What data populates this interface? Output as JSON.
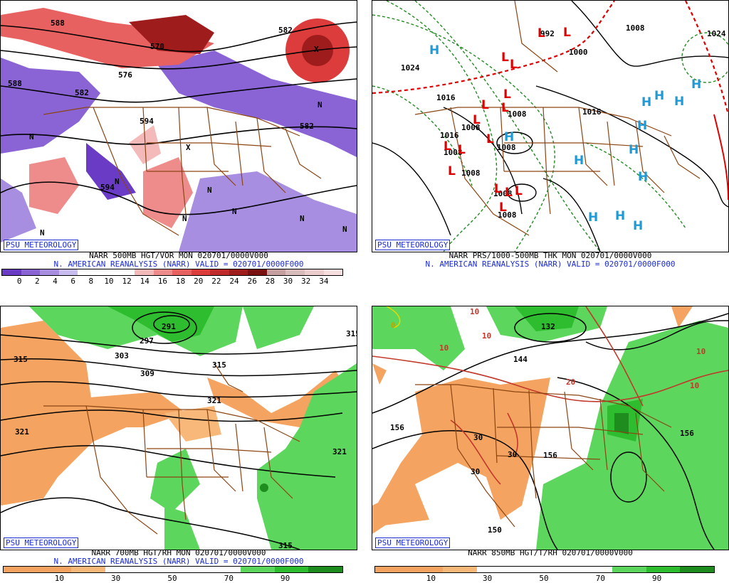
{
  "logo_text": "PSU METEOROLOGY",
  "panels": [
    {
      "id": "vor500",
      "caption1": "NARR 500MB HGT/VOR MON 020701/0000V000",
      "caption2": "N. AMERICAN REANALYSIS (NARR) VALID = 020701/0000F000",
      "colorbar": {
        "labels": [
          "0",
          "2",
          "4",
          "6",
          "8",
          "10",
          "12",
          "14",
          "16",
          "18",
          "20",
          "22",
          "24",
          "26",
          "28",
          "30",
          "32",
          "34"
        ],
        "colors": [
          "#6a3bc4",
          "#8a64d4",
          "#a78ee0",
          "#c9bcef",
          "#ffffff",
          "#ffffff",
          "#ffffff",
          "#f4b9b9",
          "#ee8c8c",
          "#e86161",
          "#dc3c3c",
          "#c02a2a",
          "#9e1c1c",
          "#7a1010",
          "#c6a0a0",
          "#d8bcbc",
          "#eccccc",
          "#f6dede"
        ]
      },
      "contour_labels": [
        "588",
        "582",
        "576",
        "570",
        "582",
        "594",
        "594",
        "588",
        "582"
      ],
      "center_marks": [
        "N",
        "N",
        "N",
        "N",
        "N",
        "N",
        "N",
        "N",
        "N",
        "X",
        "X"
      ]
    },
    {
      "id": "prs",
      "caption1": "NARR PRS/1000-500MB THK MON 020701/0000V000",
      "caption2": "N. AMERICAN REANALYSIS (NARR) VALID = 020701/0000F000",
      "contour_labels": [
        "1024",
        "1016",
        "1008",
        "1008",
        "1016",
        "1008",
        "1000",
        "992",
        "1008",
        "1008",
        "1008",
        "1008",
        "1008",
        "1016",
        "1024"
      ],
      "highs": [
        "H",
        "H",
        "H",
        "H",
        "H",
        "H",
        "H",
        "H",
        "H",
        "H",
        "H",
        "H",
        "H"
      ],
      "lows": [
        "L",
        "L",
        "L",
        "L",
        "L",
        "L",
        "L",
        "L",
        "L",
        "L",
        "L",
        "L",
        "L",
        "L",
        "L",
        "L"
      ]
    },
    {
      "id": "rh700",
      "caption1": "NARR 700MB HGT/RH MON 020701/0000V000",
      "caption2": "N. AMERICAN REANALYSIS (NARR) VALID = 020701/0000F000",
      "colorbar": {
        "labels": [
          "10",
          "30",
          "50",
          "70",
          "90"
        ],
        "colors": [
          "#f4a460",
          "#f4a460",
          "#f7b87a",
          "#ffffff",
          "#ffffff",
          "#ffffff",
          "#ffffff",
          "#5cd65c",
          "#2ebd2e",
          "#1e8c1e"
        ]
      },
      "contour_labels": [
        "291",
        "297",
        "303",
        "309",
        "315",
        "315",
        "321",
        "321",
        "321",
        "315",
        "315"
      ]
    },
    {
      "id": "t850",
      "caption1": "NARR 850MB HGT/T/RH 020701/0000V000",
      "colorbar": {
        "labels": [
          "10",
          "30",
          "50",
          "70",
          "90"
        ],
        "colors": [
          "#f4a460",
          "#f4a460",
          "#f7b87a",
          "#ffffff",
          "#ffffff",
          "#ffffff",
          "#ffffff",
          "#5cd65c",
          "#2ebd2e",
          "#1e8c1e"
        ]
      },
      "contour_labels": [
        "132",
        "144",
        "156",
        "156",
        "150",
        "156"
      ],
      "temp_labels": [
        "0",
        "10",
        "10",
        "10",
        "20",
        "30",
        "30",
        "30",
        "10",
        "10"
      ]
    }
  ]
}
